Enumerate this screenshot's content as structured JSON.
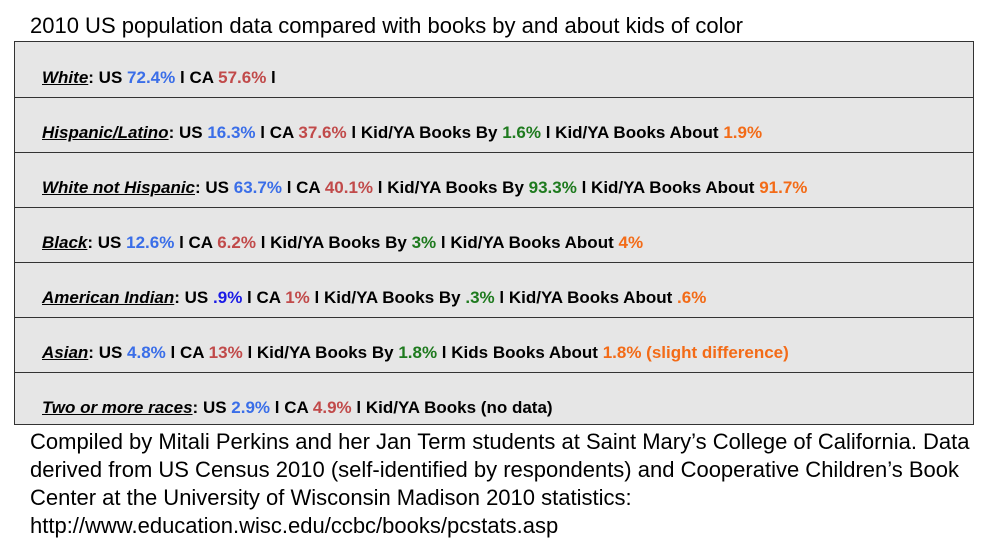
{
  "title": "2010 US population data compared with books by and about kids of color",
  "rows": [
    {
      "category": "White",
      "us": "72.4%",
      "ca": "57.6%"
    },
    {
      "category": "Hispanic/Latino",
      "us": "16.3%",
      "ca": "37.6%",
      "by_label": "Kid/YA Books By",
      "by": "1.6%",
      "about_label": "Kid/YA Books About",
      "about": "1.9%"
    },
    {
      "category": "White not Hispanic",
      "us": "63.7%",
      "ca": "40.1%",
      "by_label": "Kid/YA Books By",
      "by": "93.3%",
      "about_label": "Kid/YA Books About",
      "about": "91.7%"
    },
    {
      "category": "Black",
      "us": "12.6%",
      "ca": "6.2%",
      "by_label": "Kid/YA Books By",
      "by": "3%",
      "about_label": "Kid/YA Books About",
      "about": "4%"
    },
    {
      "category": "American Indian",
      "us": ".9%",
      "ca": "1%",
      "by_label": "Kid/YA Books By",
      "by": ".3%",
      "about_label": "Kid/YA Books About",
      "about": ".6%"
    },
    {
      "category": "Asian",
      "us": "4.8%",
      "ca": "13%",
      "by_label": "Kid/YA Books By",
      "by": "1.8%",
      "about_label": "Kids Books About",
      "about": "1.8% (slight difference)"
    },
    {
      "category": "Two or more races",
      "us": "2.9%",
      "ca": "4.9%",
      "books_label": "Kid/YA Books (no data)"
    }
  ],
  "labels": {
    "us": "US",
    "ca": "CA",
    "sep": "l"
  },
  "footer": "Compiled by Mitali Perkins and her Jan Term students at Saint Mary’s College of California. Data derived from US Census 2010 (self-identified by respondents) and Cooperative Children’s Book Center at the University of Wisconsin Madison 2010 statistics: http://www.education.wisc.edu/ccbc/books/pcstats.asp",
  "colors": {
    "us": "#3a6ee8",
    "ca": "#c14a4a",
    "by": "#1e7a1e",
    "about": "#f36b17",
    "table_bg": "#e6e6e6"
  }
}
